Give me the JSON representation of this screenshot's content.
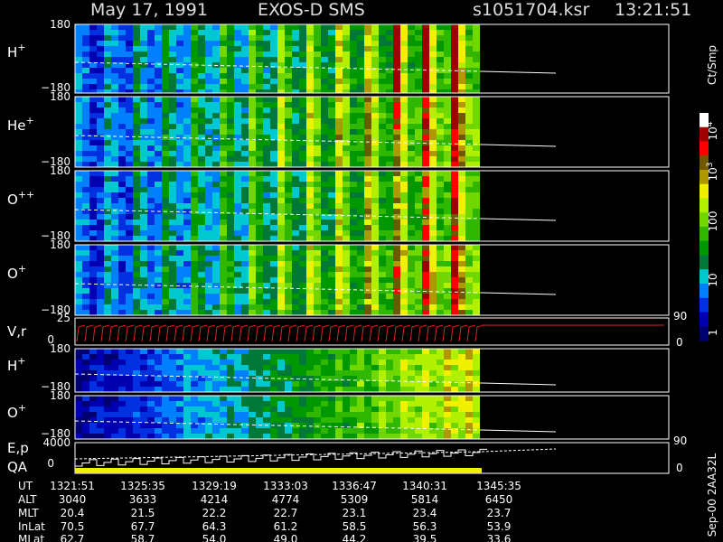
{
  "header": {
    "date": "May 17, 1991",
    "instrument": "EXOS-D SMS",
    "file": "s1051704.ksr",
    "time": "13:21:51"
  },
  "panels": [
    {
      "base": "H",
      "sup": "+",
      "top": "180",
      "bottom": "−180"
    },
    {
      "base": "He",
      "sup": "+",
      "top": "180",
      "bottom": "−180"
    },
    {
      "base": "O",
      "sup": "++",
      "top": "180",
      "bottom": "−180"
    },
    {
      "base": "O",
      "sup": "+",
      "top": "180",
      "bottom": "−180"
    }
  ],
  "vr": {
    "label": "V,r",
    "top": "25",
    "zero": "0",
    "right_top": "90",
    "right_zero": "0"
  },
  "low_panels": [
    {
      "base": "H",
      "sup": "+",
      "top": "180",
      "bottom": "−180"
    },
    {
      "base": "O",
      "sup": "+",
      "top": "180",
      "bottom": "−180"
    }
  ],
  "ep": {
    "label": "E,p",
    "label2": "QA",
    "top": "4000",
    "zero": "0",
    "right_top": "90",
    "right_zero": "0"
  },
  "colorbar": {
    "unit": "Ct/Smp",
    "ticks": [
      {
        "base": "10",
        "exp": "4"
      },
      {
        "base": "10",
        "exp": "3"
      },
      {
        "base": "100"
      },
      {
        "base": "10"
      },
      {
        "base": "1"
      }
    ]
  },
  "ephemeris": {
    "rows": [
      [
        "UT",
        "1321:51",
        "1325:35",
        "1329:19",
        "1333:03",
        "1336:47",
        "1340:31",
        "1345:35"
      ],
      [
        "ALT",
        "3040",
        "3633",
        "4214",
        "4774",
        "5309",
        "5814",
        "6450"
      ],
      [
        "MLT",
        "20.4",
        "21.5",
        "22.2",
        "22.7",
        "23.1",
        "23.4",
        "23.7"
      ],
      [
        "InLat",
        "70.5",
        "67.7",
        "64.3",
        "61.2",
        "58.5",
        "56.3",
        "53.9"
      ],
      [
        "MLat",
        "62.7",
        "58.7",
        "54.0",
        "49.0",
        "44.2",
        "39.5",
        "33.6"
      ]
    ]
  },
  "footer": "Sep-00 2AA32L"
}
